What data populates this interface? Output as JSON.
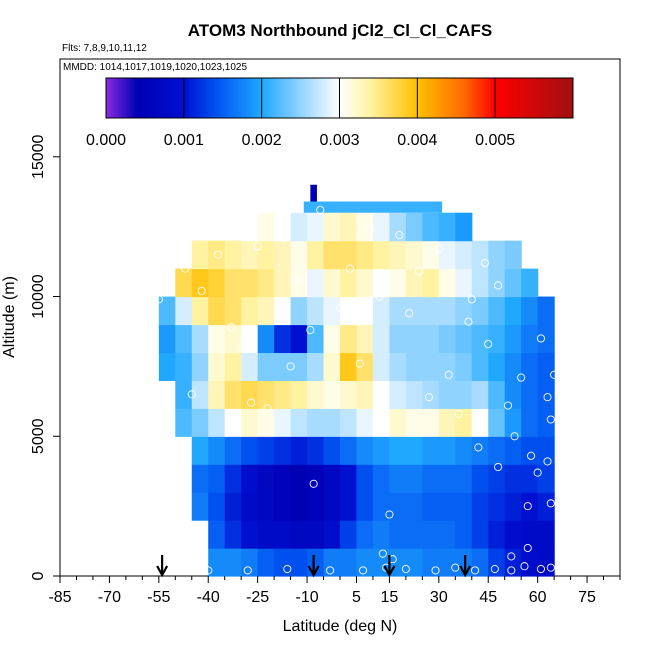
{
  "chart_data": {
    "type": "heatmap",
    "title": "ATOM3 Northbound jCl2_Cl_Cl_CAFS",
    "flights_text": "Flts: 7,8,9,10,11,12",
    "mmdd_text": "MMDD: 1014,1017,1019,1020,1023,1025",
    "xlabel": "Latitude (deg N)",
    "ylabel": "Altitude (m)",
    "xlim": [
      -85,
      85
    ],
    "ylim": [
      0,
      18500
    ],
    "x_ticks": [
      -85,
      -70,
      -55,
      -40,
      -25,
      -10,
      5,
      15,
      30,
      45,
      60,
      75
    ],
    "x_tick_labels": [
      "-85",
      "-70",
      "-55",
      "-40",
      "-25",
      "-10",
      "5",
      "15",
      "30",
      "45",
      "60",
      "75"
    ],
    "y_ticks": [
      0,
      5000,
      10000,
      15000
    ],
    "y_tick_labels": [
      "0",
      "5000",
      "10000",
      "15000"
    ],
    "colorbar": {
      "min": 0.0,
      "max": 0.006,
      "ticks": [
        0.0,
        0.001,
        0.002,
        0.003,
        0.004,
        0.005
      ],
      "tick_labels": [
        "0.000",
        "0.001",
        "0.002",
        "0.003",
        "0.004",
        "0.005"
      ],
      "stops": [
        {
          "v": 0.0,
          "c": "#8a2be2"
        },
        {
          "v": 0.0004,
          "c": "#0000b4"
        },
        {
          "v": 0.001,
          "c": "#0010d0"
        },
        {
          "v": 0.0014,
          "c": "#0050f0"
        },
        {
          "v": 0.002,
          "c": "#20a8ff"
        },
        {
          "v": 0.0026,
          "c": "#a8dcff"
        },
        {
          "v": 0.003,
          "c": "#ffffff"
        },
        {
          "v": 0.0034,
          "c": "#fff2a0"
        },
        {
          "v": 0.004,
          "c": "#ffc000"
        },
        {
          "v": 0.0046,
          "c": "#ff6a00"
        },
        {
          "v": 0.005,
          "c": "#ff0000"
        },
        {
          "v": 0.006,
          "c": "#a01010"
        }
      ]
    },
    "arrow_latitudes": [
      -54,
      -8,
      15,
      38
    ],
    "lat_edges": [
      -60,
      -55,
      -50,
      -45,
      -40,
      -35,
      -30,
      -25,
      -20,
      -15,
      -10,
      -5,
      0,
      5,
      10,
      15,
      20,
      25,
      30,
      35,
      40,
      45,
      50,
      55,
      60,
      65
    ],
    "alt_edges": [
      0,
      1000,
      2000,
      3000,
      4000,
      5000,
      6000,
      7000,
      8000,
      9000,
      10000,
      11000,
      12000,
      13000
    ],
    "values_rows_bottom_up": [
      [
        null,
        null,
        null,
        null,
        0.0018,
        0.0018,
        0.0017,
        0.0015,
        0.0014,
        0.0014,
        0.0015,
        0.0017,
        0.0017,
        0.0018,
        0.0018,
        0.0018,
        0.0018,
        0.0017,
        0.0017,
        0.0017,
        0.0016,
        0.0013,
        0.0011,
        0.0009,
        0.0008
      ],
      [
        null,
        null,
        null,
        null,
        0.0015,
        0.0012,
        0.001,
        0.0008,
        0.0008,
        0.0007,
        0.0007,
        0.0009,
        0.0013,
        0.0016,
        0.0017,
        0.0016,
        0.0016,
        0.0016,
        0.0016,
        0.0015,
        0.0013,
        0.0011,
        0.0009,
        0.0008,
        0.0008
      ],
      [
        null,
        null,
        null,
        0.0017,
        0.0014,
        0.0011,
        0.0008,
        0.0007,
        0.0005,
        0.0004,
        0.0005,
        0.0007,
        0.001,
        0.0014,
        0.0016,
        0.0016,
        0.0016,
        0.0015,
        0.0015,
        0.0015,
        0.0013,
        0.0012,
        0.0011,
        0.001,
        0.0011
      ],
      [
        null,
        null,
        null,
        0.0016,
        0.0015,
        0.0012,
        0.0009,
        0.0007,
        0.0005,
        0.0004,
        0.0005,
        0.0007,
        0.001,
        0.0014,
        0.0016,
        0.0017,
        0.0017,
        0.0016,
        0.0016,
        0.0016,
        0.0014,
        0.0013,
        0.0012,
        0.0012,
        0.0013
      ],
      [
        null,
        null,
        null,
        0.002,
        0.0018,
        0.0016,
        0.0014,
        0.0013,
        0.0012,
        0.0011,
        0.0012,
        0.0014,
        0.0016,
        0.0018,
        0.0019,
        0.002,
        0.002,
        0.0019,
        0.0019,
        0.0018,
        0.0017,
        0.0016,
        0.0015,
        0.0014,
        0.0014
      ],
      [
        null,
        null,
        0.0022,
        0.0024,
        0.0027,
        0.003,
        0.0032,
        0.0031,
        0.0029,
        0.0027,
        0.0026,
        0.0026,
        0.0027,
        0.0029,
        0.003,
        0.0032,
        0.0031,
        0.0031,
        0.0033,
        0.0034,
        0.003,
        0.0023,
        0.0019,
        0.0016,
        0.0015
      ],
      [
        null,
        null,
        0.0021,
        0.0027,
        0.0033,
        0.0036,
        0.0037,
        0.0036,
        0.0035,
        0.0034,
        0.0032,
        0.0031,
        0.0032,
        0.0033,
        0.003,
        0.0028,
        0.0027,
        0.0026,
        0.0025,
        0.0025,
        0.0026,
        0.0022,
        0.0018,
        0.0016,
        0.0015
      ],
      [
        null,
        0.002,
        0.0021,
        0.0025,
        0.0032,
        0.0034,
        0.0028,
        0.0024,
        0.0024,
        0.0024,
        0.0026,
        0.0032,
        0.0039,
        0.0036,
        0.0028,
        0.0026,
        0.0025,
        0.0025,
        0.0025,
        0.0024,
        0.0022,
        0.002,
        0.0018,
        0.0016,
        0.0015
      ],
      [
        null,
        0.0019,
        0.0022,
        0.0026,
        0.0031,
        0.0032,
        0.003,
        0.0018,
        0.0012,
        0.001,
        0.0022,
        0.0031,
        0.0035,
        0.0033,
        0.0028,
        0.0025,
        0.0025,
        0.0025,
        0.0024,
        0.0023,
        0.0022,
        0.0021,
        0.0019,
        0.0017,
        0.0016
      ],
      [
        null,
        0.0022,
        0.0028,
        0.0034,
        0.0037,
        0.0036,
        0.0034,
        0.0033,
        0.003,
        0.0025,
        0.0027,
        0.0029,
        0.003,
        0.003,
        0.0028,
        0.0026,
        0.0026,
        0.0026,
        0.0026,
        0.0025,
        0.0024,
        0.0022,
        0.002,
        0.0018,
        0.0016
      ],
      [
        null,
        null,
        0.0037,
        0.0039,
        0.0038,
        0.0036,
        0.0036,
        0.0035,
        0.0033,
        0.0031,
        0.0029,
        0.0032,
        0.0034,
        0.0032,
        0.003,
        0.0031,
        0.0033,
        0.0034,
        0.0031,
        0.0029,
        0.0027,
        0.0025,
        0.0023,
        0.0021,
        null
      ],
      [
        null,
        null,
        null,
        0.0034,
        0.0035,
        0.0034,
        0.0033,
        0.0034,
        0.0033,
        0.0031,
        0.0034,
        0.0036,
        0.0036,
        0.0035,
        0.0034,
        0.0033,
        0.0032,
        0.0031,
        0.0029,
        0.0028,
        0.0027,
        0.0025,
        0.0024,
        null,
        null
      ],
      [
        null,
        null,
        null,
        null,
        null,
        null,
        0.003,
        0.0031,
        0.003,
        0.0028,
        0.0029,
        0.0032,
        0.0033,
        0.0031,
        0.0029,
        0.0026,
        0.0024,
        0.0022,
        0.0021,
        0.0019,
        null,
        null,
        null,
        null,
        null
      ]
    ],
    "top_strip": {
      "lat_min": -11,
      "lat_max": 31,
      "alt_min": 13000,
      "alt_max": 13400,
      "value": 0.0021
    },
    "top_spike": {
      "lat_min": -9,
      "lat_max": -7,
      "alt_min": 13400,
      "alt_max": 14000,
      "value": 0.0004
    },
    "points": [
      {
        "lat": -57,
        "alt": 7700
      },
      {
        "lat": -55,
        "alt": 9900
      },
      {
        "lat": -52,
        "alt": 5300
      },
      {
        "lat": -47,
        "alt": 11000
      },
      {
        "lat": -45,
        "alt": 6500
      },
      {
        "lat": -42,
        "alt": 10200
      },
      {
        "lat": -37,
        "alt": 11500
      },
      {
        "lat": -33,
        "alt": 8900
      },
      {
        "lat": -27,
        "alt": 6200
      },
      {
        "lat": -25,
        "alt": 11800
      },
      {
        "lat": -22,
        "alt": 6000
      },
      {
        "lat": -17,
        "alt": 12100
      },
      {
        "lat": -12,
        "alt": 10600
      },
      {
        "lat": -9,
        "alt": 8800
      },
      {
        "lat": -8,
        "alt": 3300
      },
      {
        "lat": -6,
        "alt": 13100
      },
      {
        "lat": -3,
        "alt": 8600
      },
      {
        "lat": 0,
        "alt": 9600
      },
      {
        "lat": 3,
        "alt": 11000
      },
      {
        "lat": 6,
        "alt": 7600
      },
      {
        "lat": 9,
        "alt": 12400
      },
      {
        "lat": 12,
        "alt": 10000
      },
      {
        "lat": 15,
        "alt": 2200
      },
      {
        "lat": 18,
        "alt": 12200
      },
      {
        "lat": 21,
        "alt": 9400
      },
      {
        "lat": 24,
        "alt": 10900
      },
      {
        "lat": 27,
        "alt": 6400
      },
      {
        "lat": 30,
        "alt": 11700
      },
      {
        "lat": 33,
        "alt": 7200
      },
      {
        "lat": 36,
        "alt": 5800
      },
      {
        "lat": 39,
        "alt": 9100
      },
      {
        "lat": 42,
        "alt": 4600
      },
      {
        "lat": 45,
        "alt": 8300
      },
      {
        "lat": 48,
        "alt": 3900
      },
      {
        "lat": 51,
        "alt": 6100
      },
      {
        "lat": 53,
        "alt": 5000
      },
      {
        "lat": 55,
        "alt": 7100
      },
      {
        "lat": 57,
        "alt": 2500
      },
      {
        "lat": 58,
        "alt": 4300
      },
      {
        "lat": 60,
        "alt": 3700
      },
      {
        "lat": 61,
        "alt": 8500
      },
      {
        "lat": 63,
        "alt": 6400
      },
      {
        "lat": 64,
        "alt": 5600
      },
      {
        "lat": 64,
        "alt": 2600
      },
      {
        "lat": 63,
        "alt": 4100
      },
      {
        "lat": 65,
        "alt": 7200
      },
      {
        "lat": -40,
        "alt": 200
      },
      {
        "lat": -28,
        "alt": 200
      },
      {
        "lat": -16,
        "alt": 250
      },
      {
        "lat": -3,
        "alt": 200
      },
      {
        "lat": 7,
        "alt": 200
      },
      {
        "lat": 14,
        "alt": 300
      },
      {
        "lat": 20,
        "alt": 250
      },
      {
        "lat": 29,
        "alt": 200
      },
      {
        "lat": 35,
        "alt": 300
      },
      {
        "lat": 41,
        "alt": 200
      },
      {
        "lat": 47,
        "alt": 250
      },
      {
        "lat": 52,
        "alt": 200
      },
      {
        "lat": 56,
        "alt": 350
      },
      {
        "lat": 61,
        "alt": 250
      },
      {
        "lat": 64,
        "alt": 300
      },
      {
        "lat": 52,
        "alt": 700
      },
      {
        "lat": 57,
        "alt": 1000
      },
      {
        "lat": 13,
        "alt": 800
      },
      {
        "lat": 16,
        "alt": 600
      },
      {
        "lat": -30,
        "alt": 8200
      },
      {
        "lat": -15,
        "alt": 7500
      },
      {
        "lat": 40,
        "alt": 9900
      },
      {
        "lat": 44,
        "alt": 11200
      },
      {
        "lat": 48,
        "alt": 10400
      }
    ]
  }
}
